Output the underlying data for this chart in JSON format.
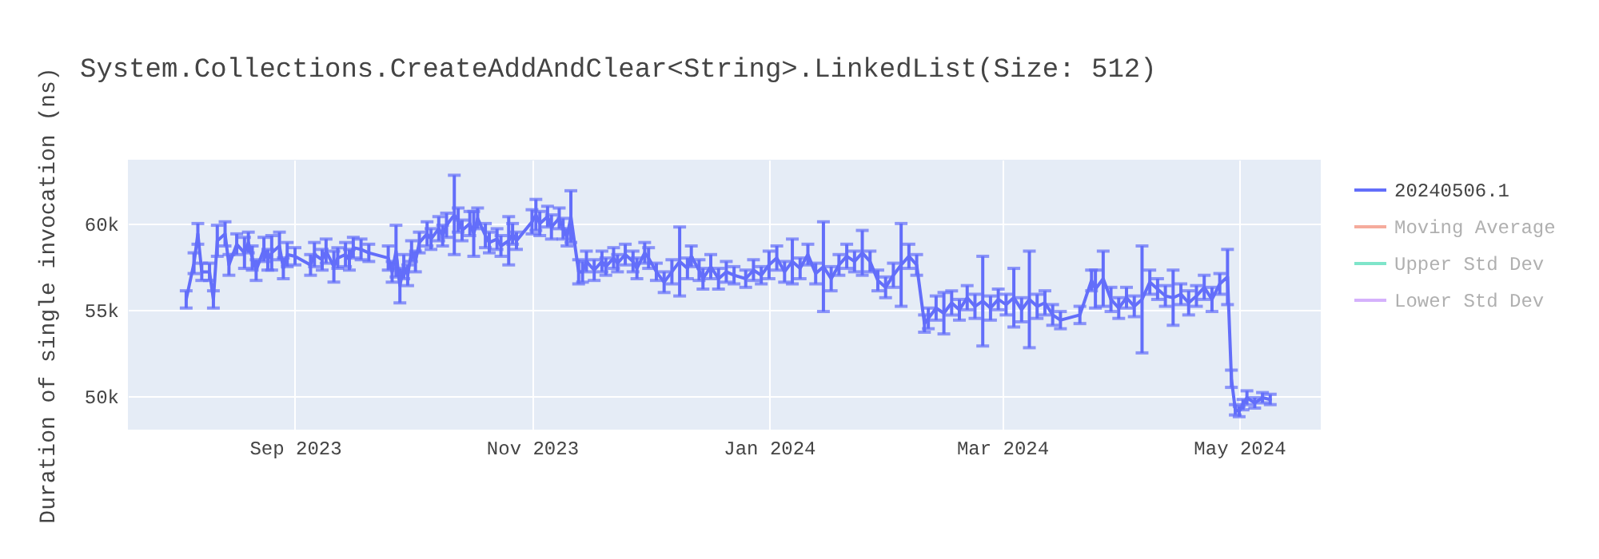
{
  "chart_data": {
    "type": "line",
    "title": "System.Collections.CreateAddAndClear<String>.LinkedList(Size: 512)",
    "ylabel": "Duration of single invocation (ns)",
    "x": [
      "2023-08-04",
      "2023-08-06",
      "2023-08-07",
      "2023-08-08",
      "2023-08-10",
      "2023-08-11",
      "2023-08-12",
      "2023-08-14",
      "2023-08-15",
      "2023-08-17",
      "2023-08-19",
      "2023-08-20",
      "2023-08-21",
      "2023-08-22",
      "2023-08-24",
      "2023-08-25",
      "2023-08-26",
      "2023-08-28",
      "2023-08-29",
      "2023-08-30",
      "2023-09-01",
      "2023-09-05",
      "2023-09-06",
      "2023-09-08",
      "2023-09-09",
      "2023-09-11",
      "2023-09-12",
      "2023-09-14",
      "2023-09-15",
      "2023-09-16",
      "2023-09-18",
      "2023-09-20",
      "2023-09-25",
      "2023-09-26",
      "2023-09-27",
      "2023-09-28",
      "2023-09-29",
      "2023-09-30",
      "2023-10-01",
      "2023-10-02",
      "2023-10-03",
      "2023-10-05",
      "2023-10-06",
      "2023-10-08",
      "2023-10-09",
      "2023-10-10",
      "2023-10-12",
      "2023-10-13",
      "2023-10-14",
      "2023-10-16",
      "2023-10-17",
      "2023-10-18",
      "2023-10-20",
      "2023-10-21",
      "2023-10-23",
      "2023-10-24",
      "2023-10-26",
      "2023-10-27",
      "2023-10-28",
      "2023-11-01",
      "2023-11-02",
      "2023-11-03",
      "2023-11-05",
      "2023-11-06",
      "2023-11-08",
      "2023-11-09",
      "2023-11-10",
      "2023-11-11",
      "2023-11-13",
      "2023-11-14",
      "2023-11-15",
      "2023-11-17",
      "2023-11-19",
      "2023-11-20",
      "2023-11-22",
      "2023-11-23",
      "2023-11-25",
      "2023-11-27",
      "2023-11-28",
      "2023-11-30",
      "2023-12-01",
      "2023-12-03",
      "2023-12-05",
      "2023-12-07",
      "2023-12-09",
      "2023-12-11",
      "2023-12-12",
      "2023-12-14",
      "2023-12-15",
      "2023-12-17",
      "2023-12-19",
      "2023-12-21",
      "2023-12-23",
      "2023-12-26",
      "2023-12-28",
      "2023-12-30",
      "2024-01-01",
      "2024-01-03",
      "2024-01-05",
      "2024-01-07",
      "2024-01-09",
      "2024-01-11",
      "2024-01-13",
      "2024-01-15",
      "2024-01-17",
      "2024-01-19",
      "2024-01-21",
      "2024-01-23",
      "2024-01-25",
      "2024-01-27",
      "2024-01-29",
      "2024-01-31",
      "2024-02-02",
      "2024-02-04",
      "2024-02-06",
      "2024-02-08",
      "2024-02-10",
      "2024-02-11",
      "2024-02-13",
      "2024-02-15",
      "2024-02-17",
      "2024-02-19",
      "2024-02-21",
      "2024-02-23",
      "2024-02-25",
      "2024-02-27",
      "2024-02-29",
      "2024-03-02",
      "2024-03-04",
      "2024-03-06",
      "2024-03-08",
      "2024-03-10",
      "2024-03-12",
      "2024-03-14",
      "2024-03-16",
      "2024-03-21",
      "2024-03-24",
      "2024-03-25",
      "2024-03-27",
      "2024-03-29",
      "2024-03-31",
      "2024-04-02",
      "2024-04-04",
      "2024-04-06",
      "2024-04-08",
      "2024-04-10",
      "2024-04-12",
      "2024-04-14",
      "2024-04-16",
      "2024-04-18",
      "2024-04-20",
      "2024-04-22",
      "2024-04-24",
      "2024-04-26",
      "2024-04-28",
      "2024-04-29",
      "2024-04-30",
      "2024-05-01",
      "2024-05-02",
      "2024-05-03",
      "2024-05-05",
      "2024-05-07",
      "2024-05-09"
    ],
    "series": [
      {
        "name": "20240506.1",
        "color": "#636efa",
        "values": [
          55600,
          57700,
          59400,
          57200,
          57200,
          55600,
          59000,
          59400,
          57600,
          58800,
          58300,
          58900,
          58000,
          57300,
          58500,
          57900,
          58300,
          58700,
          57400,
          58200,
          58100,
          57600,
          58200,
          57900,
          58400,
          57500,
          58000,
          58200,
          57900,
          58600,
          58500,
          58300,
          58000,
          57200,
          58400,
          56400,
          57500,
          57000,
          58400,
          57800,
          58900,
          59400,
          59100,
          59700,
          59300,
          59900,
          60500,
          60200,
          59600,
          60000,
          59400,
          60300,
          59300,
          58900,
          59100,
          58700,
          59000,
          59400,
          59000,
          60100,
          60500,
          60000,
          60400,
          59800,
          60300,
          59700,
          59200,
          60400,
          57200,
          57200,
          57800,
          57300,
          57800,
          57500,
          58000,
          57700,
          58200,
          57800,
          57400,
          58300,
          58000,
          57200,
          56600,
          57200,
          57800,
          57400,
          58100,
          57300,
          56800,
          57500,
          56800,
          57200,
          57000,
          56800,
          57300,
          57000,
          57600,
          58000,
          57200,
          57800,
          57400,
          58200,
          57100,
          57500,
          56800,
          57600,
          58100,
          57800,
          58300,
          57800,
          56700,
          56300,
          57000,
          57600,
          58100,
          57600,
          54200,
          54500,
          55100,
          54800,
          55400,
          55000,
          55700,
          55200,
          55500,
          55100,
          55600,
          55300,
          55700,
          55000,
          55600,
          55200,
          55400,
          54700,
          54400,
          54700,
          56700,
          56200,
          56800,
          55600,
          55100,
          55700,
          55200,
          55600,
          56600,
          56200,
          55800,
          55700,
          55900,
          55400,
          55800,
          56300,
          55600,
          56500,
          56900,
          51000,
          49200,
          49100,
          49500,
          49900,
          49600,
          49900,
          49800
        ],
        "errors": [
          500,
          600,
          600,
          500,
          500,
          500,
          900,
          700,
          600,
          600,
          900,
          600,
          700,
          600,
          700,
          600,
          1000,
          800,
          600,
          700,
          500,
          600,
          700,
          600,
          700,
          900,
          600,
          700,
          600,
          600,
          600,
          500,
          700,
          600,
          1500,
          1000,
          700,
          600,
          600,
          600,
          600,
          700,
          600,
          700,
          600,
          700,
          2300,
          700,
          600,
          700,
          1300,
          600,
          700,
          600,
          600,
          600,
          1400,
          600,
          500,
          700,
          900,
          700,
          600,
          700,
          600,
          600,
          500,
          1500,
          700,
          600,
          600,
          600,
          600,
          500,
          600,
          500,
          600,
          600,
          600,
          600,
          600,
          500,
          600,
          700,
          2000,
          600,
          600,
          600,
          600,
          700,
          600,
          600,
          500,
          500,
          600,
          500,
          800,
          700,
          600,
          1300,
          600,
          600,
          600,
          2600,
          700,
          600,
          700,
          600,
          1300,
          600,
          600,
          600,
          700,
          2400,
          700,
          600,
          500,
          600,
          700,
          1200,
          700,
          600,
          700,
          700,
          2600,
          700,
          600,
          600,
          1700,
          700,
          2800,
          700,
          700,
          600,
          500,
          500,
          600,
          1100,
          1600,
          700,
          600,
          600,
          600,
          3100,
          700,
          600,
          600,
          1600,
          600,
          700,
          600,
          700,
          700,
          600,
          1600,
          500,
          300,
          300,
          300,
          400,
          300,
          300,
          300
        ]
      },
      {
        "name": "Moving Average",
        "color": "#f5ab9c",
        "values": [
          null,
          null,
          null,
          null,
          null,
          null,
          null,
          null,
          null,
          null,
          null,
          null,
          null,
          null,
          null,
          null,
          null,
          null,
          null,
          null,
          null,
          null,
          null,
          null,
          null,
          null,
          null,
          null,
          null,
          null,
          null,
          null,
          null,
          null,
          null,
          null,
          null,
          null,
          null,
          null,
          null,
          null,
          null,
          null,
          null,
          null,
          null,
          null,
          null,
          null,
          null,
          null,
          null,
          null,
          null,
          null,
          null,
          null,
          null,
          null,
          null,
          null,
          null,
          null,
          null,
          null,
          null,
          null,
          null,
          null,
          null,
          null,
          null,
          null,
          null,
          null,
          null,
          null,
          null,
          null,
          null,
          null,
          null,
          null,
          null,
          null,
          null,
          null,
          null,
          null,
          null,
          null,
          null,
          null,
          null,
          null,
          null,
          null,
          null,
          null,
          null,
          null,
          null,
          null,
          null,
          null,
          null,
          null,
          null,
          null,
          null,
          null,
          null,
          null,
          null,
          null,
          null,
          null,
          null,
          null,
          null,
          null,
          null,
          null,
          null,
          null,
          null,
          null,
          null,
          null,
          null,
          null,
          null,
          null,
          null,
          null,
          null,
          null,
          null,
          null,
          null,
          null,
          null,
          null,
          null,
          null,
          null,
          null,
          null,
          null,
          null,
          null,
          null,
          null,
          null,
          null,
          null,
          null,
          null,
          null,
          null,
          null,
          null
        ]
      },
      {
        "name": "Upper Std Dev",
        "color": "#7fe5ca",
        "values": [
          null,
          null,
          null,
          null,
          null,
          null,
          null,
          null,
          null,
          null,
          null,
          null,
          null,
          null,
          null,
          null,
          null,
          null,
          null,
          null,
          null,
          null,
          null,
          null,
          null,
          null,
          null,
          null,
          null,
          null,
          null,
          null,
          null,
          null,
          null,
          null,
          null,
          null,
          null,
          null,
          null,
          null,
          null,
          null,
          null,
          null,
          null,
          null,
          null,
          null,
          null,
          null,
          null,
          null,
          null,
          null,
          null,
          null,
          null,
          null,
          null,
          null,
          null,
          null,
          null,
          null,
          null,
          null,
          null,
          null,
          null,
          null,
          null,
          null,
          null,
          null,
          null,
          null,
          null,
          null,
          null,
          null,
          null,
          null,
          null,
          null,
          null,
          null,
          null,
          null,
          null,
          null,
          null,
          null,
          null,
          null,
          null,
          null,
          null,
          null,
          null,
          null,
          null,
          null,
          null,
          null,
          null,
          null,
          null,
          null,
          null,
          null,
          null,
          null,
          null,
          null,
          null,
          null,
          null,
          null,
          null,
          null,
          null,
          null,
          null,
          null,
          null,
          null,
          null,
          null,
          null,
          null,
          null,
          null,
          null,
          null,
          null,
          null,
          null,
          null,
          null,
          null,
          null,
          null,
          null,
          null,
          null,
          null,
          null,
          null,
          null,
          null,
          null,
          null,
          null,
          null,
          null,
          null,
          null,
          null,
          null,
          null,
          null
        ]
      },
      {
        "name": "Lower Std Dev",
        "color": "#d5b1fc",
        "values": [
          null,
          null,
          null,
          null,
          null,
          null,
          null,
          null,
          null,
          null,
          null,
          null,
          null,
          null,
          null,
          null,
          null,
          null,
          null,
          null,
          null,
          null,
          null,
          null,
          null,
          null,
          null,
          null,
          null,
          null,
          null,
          null,
          null,
          null,
          null,
          null,
          null,
          null,
          null,
          null,
          null,
          null,
          null,
          null,
          null,
          null,
          null,
          null,
          null,
          null,
          null,
          null,
          null,
          null,
          null,
          null,
          null,
          null,
          null,
          null,
          null,
          null,
          null,
          null,
          null,
          null,
          null,
          null,
          null,
          null,
          null,
          null,
          null,
          null,
          null,
          null,
          null,
          null,
          null,
          null,
          null,
          null,
          null,
          null,
          null,
          null,
          null,
          null,
          null,
          null,
          null,
          null,
          null,
          null,
          null,
          null,
          null,
          null,
          null,
          null,
          null,
          null,
          null,
          null,
          null,
          null,
          null,
          null,
          null,
          null,
          null,
          null,
          null,
          null,
          null,
          null,
          null,
          null,
          null,
          null,
          null,
          null,
          null,
          null,
          null,
          null,
          null,
          null,
          null,
          null,
          null,
          null,
          null,
          null,
          null,
          null,
          null,
          null,
          null,
          null,
          null,
          null,
          null,
          null,
          null,
          null,
          null,
          null,
          null,
          null,
          null,
          null,
          null,
          null,
          null,
          null,
          null,
          null,
          null,
          null,
          null,
          null,
          null
        ]
      }
    ],
    "xlim": [
      "2023-07-20",
      "2024-05-22"
    ],
    "xticks": [
      {
        "value": "2023-09-01",
        "label": "Sep 2023"
      },
      {
        "value": "2023-11-01",
        "label": "Nov 2023"
      },
      {
        "value": "2024-01-01",
        "label": "Jan 2024"
      },
      {
        "value": "2024-03-01",
        "label": "Mar 2024"
      },
      {
        "value": "2024-05-01",
        "label": "May 2024"
      }
    ],
    "ylim": [
      48050,
      63700
    ],
    "yticks": [
      {
        "value": 50000,
        "label": "50k"
      },
      {
        "value": 55000,
        "label": "55k"
      },
      {
        "value": 60000,
        "label": "60k"
      }
    ],
    "grid": true,
    "legend": "top right",
    "marker": "none",
    "line_style": "solid"
  }
}
